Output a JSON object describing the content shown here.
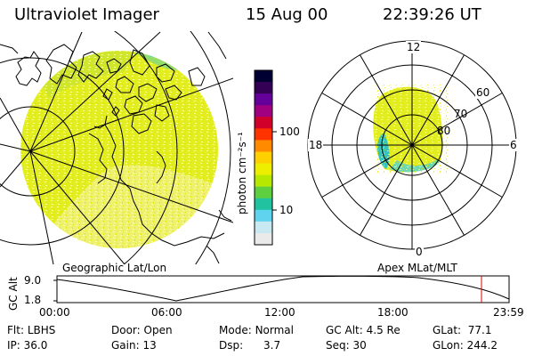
{
  "header": {
    "title": "Ultraviolet Imager",
    "date": "15 Aug 00",
    "time": "22:39:26 UT"
  },
  "colorbar": {
    "label": "photon cm⁻²s⁻¹",
    "ticks": [
      "100",
      "10"
    ],
    "colors": [
      "#000033",
      "#330055",
      "#66009a",
      "#a00080",
      "#d0002a",
      "#ff3300",
      "#ff8a00",
      "#ffd000",
      "#eeee00",
      "#b6e800",
      "#5ed040",
      "#21c2a0",
      "#60d4ee",
      "#c8e8f2",
      "#eaeaea"
    ]
  },
  "polar_plot": {
    "mlt_labels": {
      "top": "12",
      "left": "18",
      "right": "6",
      "bottom": "0"
    },
    "lat_labels": [
      "60",
      "70",
      "80"
    ]
  },
  "projections": {
    "left": "Geographic Lat/Lon",
    "right": "Apex MLat/MLT"
  },
  "altitude_plot": {
    "ylabel": "GC Alt",
    "yticks": [
      "9.0",
      "1.8"
    ],
    "xticks": [
      "00:00",
      "06:00",
      "12:00",
      "18:00",
      "23:59"
    ],
    "marker_color": "#dd0000"
  },
  "info_rows": [
    [
      {
        "label": "Flt:",
        "value": "LBHS"
      },
      {
        "label": "Door:",
        "value": "Open"
      },
      {
        "label": "Mode:",
        "value": "Normal"
      },
      {
        "label": "GC Alt:",
        "value": "4.5 Re"
      },
      {
        "label": "GLat:",
        "value": "77.1"
      }
    ],
    [
      {
        "label": "IP:",
        "value": "36.0"
      },
      {
        "label": "Gain:",
        "value": "13"
      },
      {
        "label": "Dsp:",
        "value": "3.7"
      },
      {
        "label": "Seq:",
        "value": "30"
      },
      {
        "label": "GLon:",
        "value": "244.2"
      }
    ]
  ]
}
